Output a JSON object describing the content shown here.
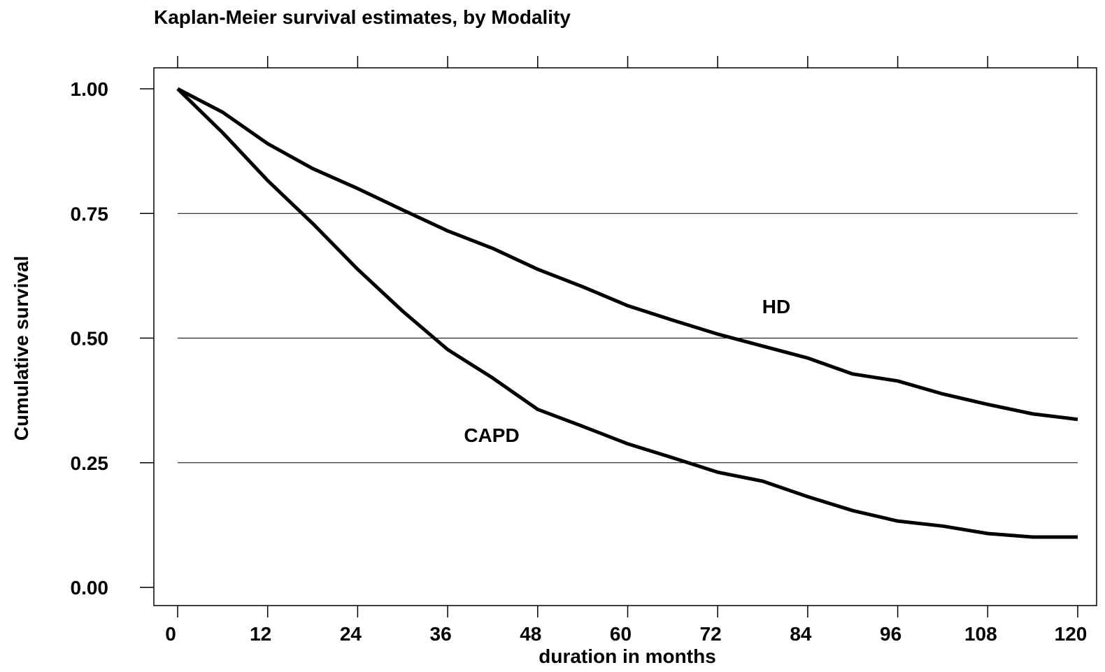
{
  "chart_data": {
    "type": "line",
    "title": "Kaplan-Meier survival estimates, by Modality",
    "x_label": "duration in months",
    "y_label": "Cumulative survival",
    "x": [
      0,
      6,
      12,
      18,
      24,
      30,
      36,
      42,
      48,
      54,
      60,
      66,
      72,
      78,
      84,
      90,
      96,
      102,
      108,
      114,
      120
    ],
    "series": [
      {
        "name": "HD",
        "color": "#000000",
        "values": [
          1.0,
          0.953,
          0.89,
          0.84,
          0.8,
          0.757,
          0.715,
          0.68,
          0.638,
          0.603,
          0.565,
          0.536,
          0.508,
          0.484,
          0.46,
          0.428,
          0.414,
          0.388,
          0.367,
          0.348,
          0.337
        ]
      },
      {
        "name": "CAPD",
        "color": "#000000",
        "values": [
          1.0,
          0.912,
          0.816,
          0.73,
          0.638,
          0.554,
          0.477,
          0.42,
          0.357,
          0.323,
          0.288,
          0.26,
          0.231,
          0.213,
          0.182,
          0.154,
          0.133,
          0.123,
          0.108,
          0.101,
          0.101
        ]
      }
    ],
    "xlim": [
      0,
      120
    ],
    "ylim": [
      0,
      1
    ],
    "xticks": [
      0,
      12,
      24,
      36,
      48,
      60,
      72,
      84,
      96,
      108,
      120
    ],
    "yticks": [
      {
        "value": 0,
        "label": "0.00"
      },
      {
        "value": 0.25,
        "label": "0.25"
      },
      {
        "value": 0.5,
        "label": "0.50"
      },
      {
        "value": 0.75,
        "label": "0.75"
      },
      {
        "value": 1,
        "label": "1.00"
      }
    ],
    "grid": true
  }
}
